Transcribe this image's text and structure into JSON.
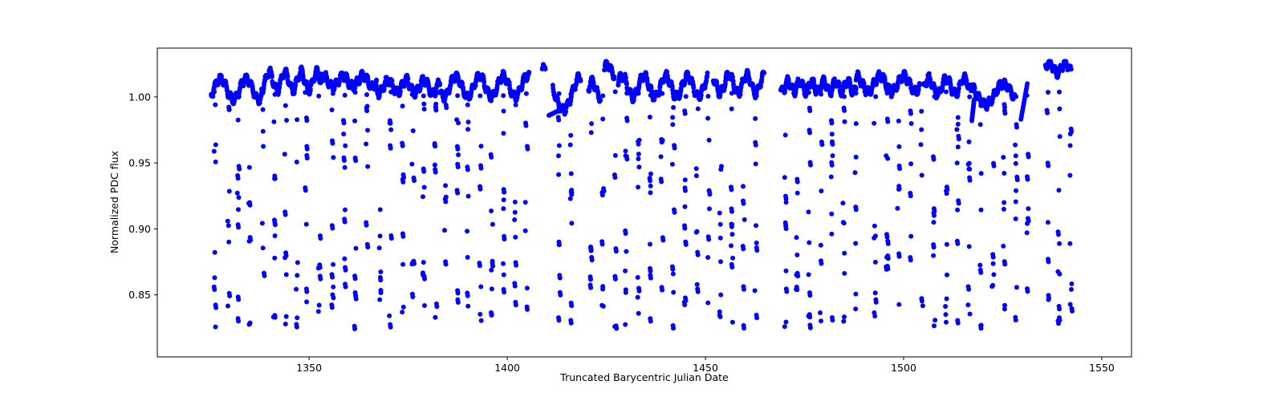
{
  "chart_data": {
    "type": "scatter",
    "title": "",
    "xlabel": "Truncated Barycentric Julian Date",
    "ylabel": "Normalized PDC flux",
    "xlim": [
      1311.7,
      1557.5
    ],
    "ylim": [
      0.803,
      1.037
    ],
    "xticks": [
      1350,
      1400,
      1450,
      1500,
      1550
    ],
    "xtick_labels": [
      "1350",
      "1400",
      "1450",
      "1500",
      "1550"
    ],
    "yticks": [
      0.85,
      0.9,
      0.95,
      1.0
    ],
    "ytick_labels": [
      "0.85",
      "0.90",
      "0.95",
      "1.00"
    ],
    "grid": false,
    "legend": null,
    "marker_color": "#0000ff",
    "marker_size": 3,
    "series": [
      {
        "name": "PDC flux",
        "description": "Quasi-continuous baseline near 1.00-1.02 with stellar variability, plus periodic transit-like dip columns reaching down to ~0.82",
        "baseline_segments": [
          {
            "x_start": 1325.3,
            "x_end": 1338.0,
            "mean": 1.006,
            "amp": 0.008,
            "period": 6.5
          },
          {
            "x_start": 1338.0,
            "x_end": 1353.0,
            "mean": 1.012,
            "amp": 0.007,
            "period": 4.0
          },
          {
            "x_start": 1353.0,
            "x_end": 1367.0,
            "mean": 1.012,
            "amp": 0.004,
            "period": 5.0
          },
          {
            "x_start": 1367.0,
            "x_end": 1383.0,
            "mean": 1.008,
            "amp": 0.005,
            "period": 4.5
          },
          {
            "x_start": 1383.0,
            "x_end": 1405.5,
            "mean": 1.008,
            "amp": 0.008,
            "period": 6.0
          },
          {
            "x_start": 1408.8,
            "x_end": 1409.6,
            "mean": 1.022,
            "amp": 0.002,
            "period": 2.0
          },
          {
            "x_start": 1411.5,
            "x_end": 1418.5,
            "mean": 1.003,
            "amp": 0.013,
            "period": 9.0
          },
          {
            "x_start": 1420.5,
            "x_end": 1423.5,
            "mean": 1.006,
            "amp": 0.006,
            "period": 4.0
          },
          {
            "x_start": 1424.5,
            "x_end": 1427.0,
            "mean": 1.021,
            "amp": 0.004,
            "period": 3.0
          },
          {
            "x_start": 1428.0,
            "x_end": 1450.5,
            "mean": 1.008,
            "amp": 0.008,
            "period": 5.5
          },
          {
            "x_start": 1452.0,
            "x_end": 1464.8,
            "mean": 1.01,
            "amp": 0.007,
            "period": 4.5
          },
          {
            "x_start": 1469.0,
            "x_end": 1488.0,
            "mean": 1.008,
            "amp": 0.004,
            "period": 3.0
          },
          {
            "x_start": 1488.0,
            "x_end": 1504.0,
            "mean": 1.01,
            "amp": 0.006,
            "period": 6.0
          },
          {
            "x_start": 1505.0,
            "x_end": 1517.0,
            "mean": 1.008,
            "amp": 0.006,
            "period": 4.5
          },
          {
            "x_start": 1517.0,
            "x_end": 1528.0,
            "mean": 1.002,
            "amp": 0.008,
            "period": 9.0
          },
          {
            "x_start": 1535.8,
            "x_end": 1542.3,
            "mean": 1.022,
            "amp": 0.004,
            "period": 4.0
          }
        ],
        "ramp_segments": [
          {
            "x_start": 1529.6,
            "x_end": 1531.2,
            "y_start": 0.983,
            "y_end": 1.01
          },
          {
            "x_start": 1517.2,
            "x_end": 1517.8,
            "y_start": 0.982,
            "y_end": 0.998
          },
          {
            "x_start": 1410.5,
            "x_end": 1413.2,
            "y_start": 0.986,
            "y_end": 0.99
          }
        ],
        "dip_columns_x": [
          1326.2,
          1329.7,
          1332.1,
          1335.0,
          1338.4,
          1341.2,
          1344.1,
          1346.9,
          1349.2,
          1352.6,
          1355.9,
          1358.9,
          1361.6,
          1364.6,
          1367.9,
          1370.5,
          1373.6,
          1376.2,
          1378.9,
          1381.9,
          1384.4,
          1387.4,
          1390.1,
          1393.2,
          1396.1,
          1399.0,
          1401.9,
          1404.8,
          1413.1,
          1416.1,
          1421.1,
          1424.1,
          1427.2,
          1430.0,
          1433.1,
          1436.0,
          1439.0,
          1441.9,
          1444.9,
          1447.9,
          1450.8,
          1453.8,
          1456.7,
          1459.7,
          1462.7,
          1470.2,
          1473.0,
          1476.2,
          1479.1,
          1481.9,
          1484.9,
          1487.9,
          1492.8,
          1495.8,
          1498.7,
          1501.8,
          1504.6,
          1507.7,
          1510.7,
          1513.6,
          1516.5,
          1519.5,
          1522.5,
          1525.4,
          1528.4,
          1531.3,
          1536.3,
          1539.2,
          1542.2
        ],
        "dip_levels": [
          0.828,
          0.835,
          0.842,
          0.849,
          0.856,
          0.866,
          0.873,
          0.88,
          0.888,
          0.896,
          0.905,
          0.914,
          0.922,
          0.93,
          0.94,
          0.948,
          0.956,
          0.965,
          0.973,
          0.982,
          0.992
        ],
        "y_min": 0.819,
        "y_max": 1.027
      }
    ]
  }
}
